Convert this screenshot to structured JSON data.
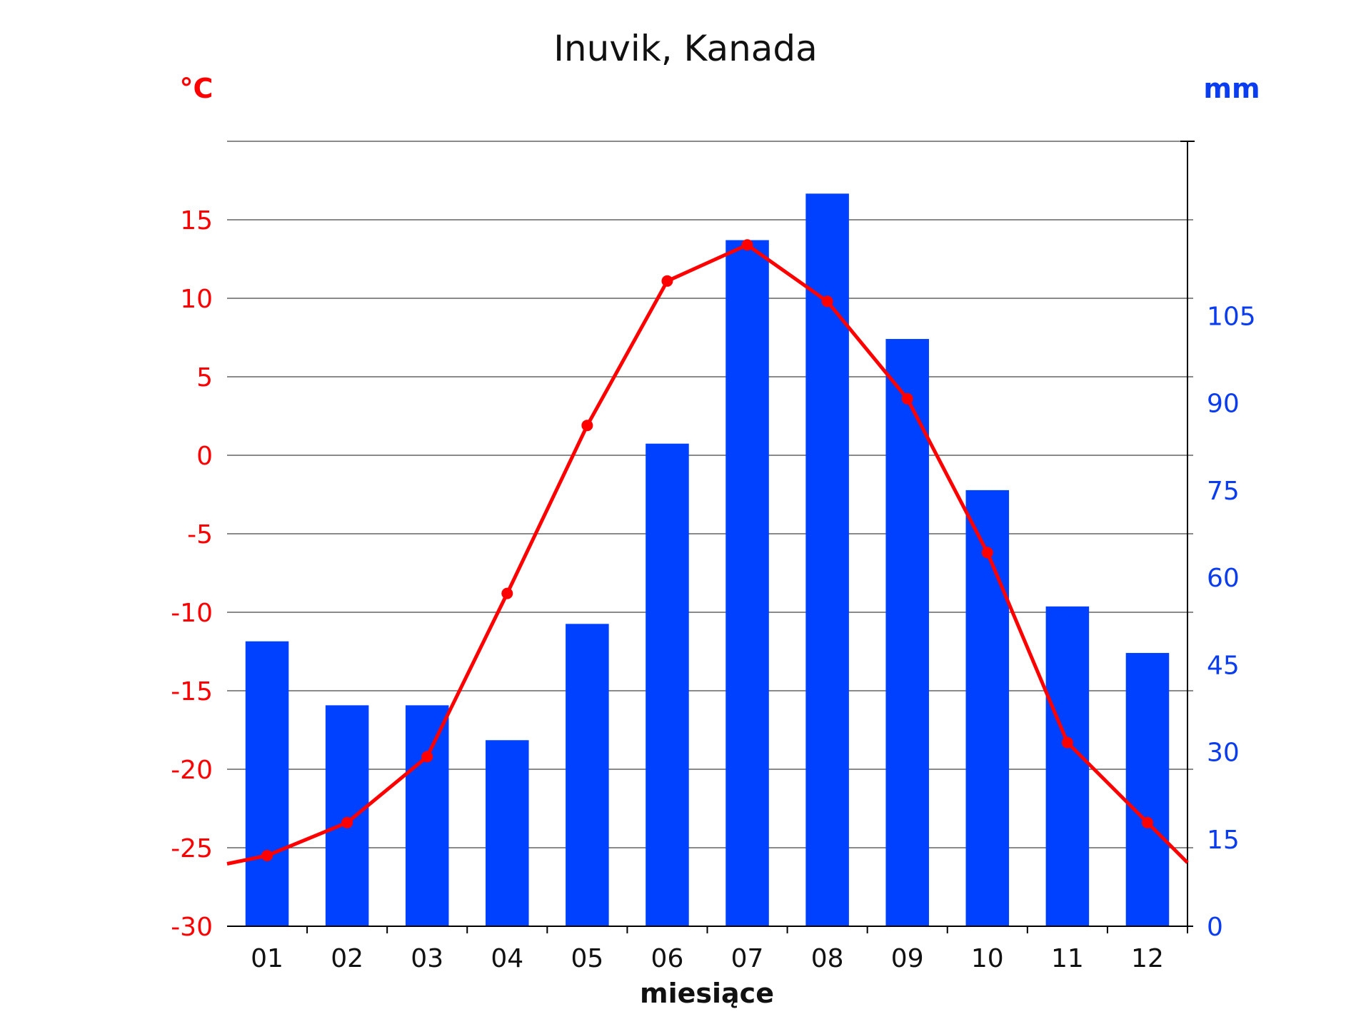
{
  "chart_data": {
    "type": "bar",
    "title": "Inuvik, Kanada",
    "xlabel": "miesiące",
    "categories": [
      "01",
      "02",
      "03",
      "04",
      "05",
      "06",
      "07",
      "08",
      "09",
      "10",
      "11",
      "12"
    ],
    "series": [
      {
        "type": "bar",
        "axis": "right",
        "unit": "mm",
        "values": [
          49,
          38,
          38,
          32,
          52,
          83,
          118,
          126,
          101,
          75,
          55,
          47
        ]
      },
      {
        "type": "line",
        "axis": "left",
        "unit": "°C",
        "values": [
          -25.5,
          -23.4,
          -19.2,
          -8.8,
          1.9,
          11.1,
          13.4,
          9.8,
          3.6,
          -6.2,
          -18.3,
          -23.4
        ]
      }
    ],
    "y_left": {
      "label": "°C",
      "ylim": [
        -30,
        20
      ],
      "ticks": [
        15,
        10,
        5,
        0,
        -5,
        -10,
        -15,
        -20,
        -25,
        -30
      ]
    },
    "y_right": {
      "label": "mm",
      "ylim": [
        0,
        135
      ],
      "ticks": [
        105,
        90,
        75,
        60,
        45,
        30,
        15,
        0
      ]
    },
    "grid": true,
    "colors": {
      "bars": "#0040ff",
      "line": "#ff0000",
      "left_axis_text": "#ff0000",
      "right_axis_text": "#0a3cf0"
    }
  }
}
